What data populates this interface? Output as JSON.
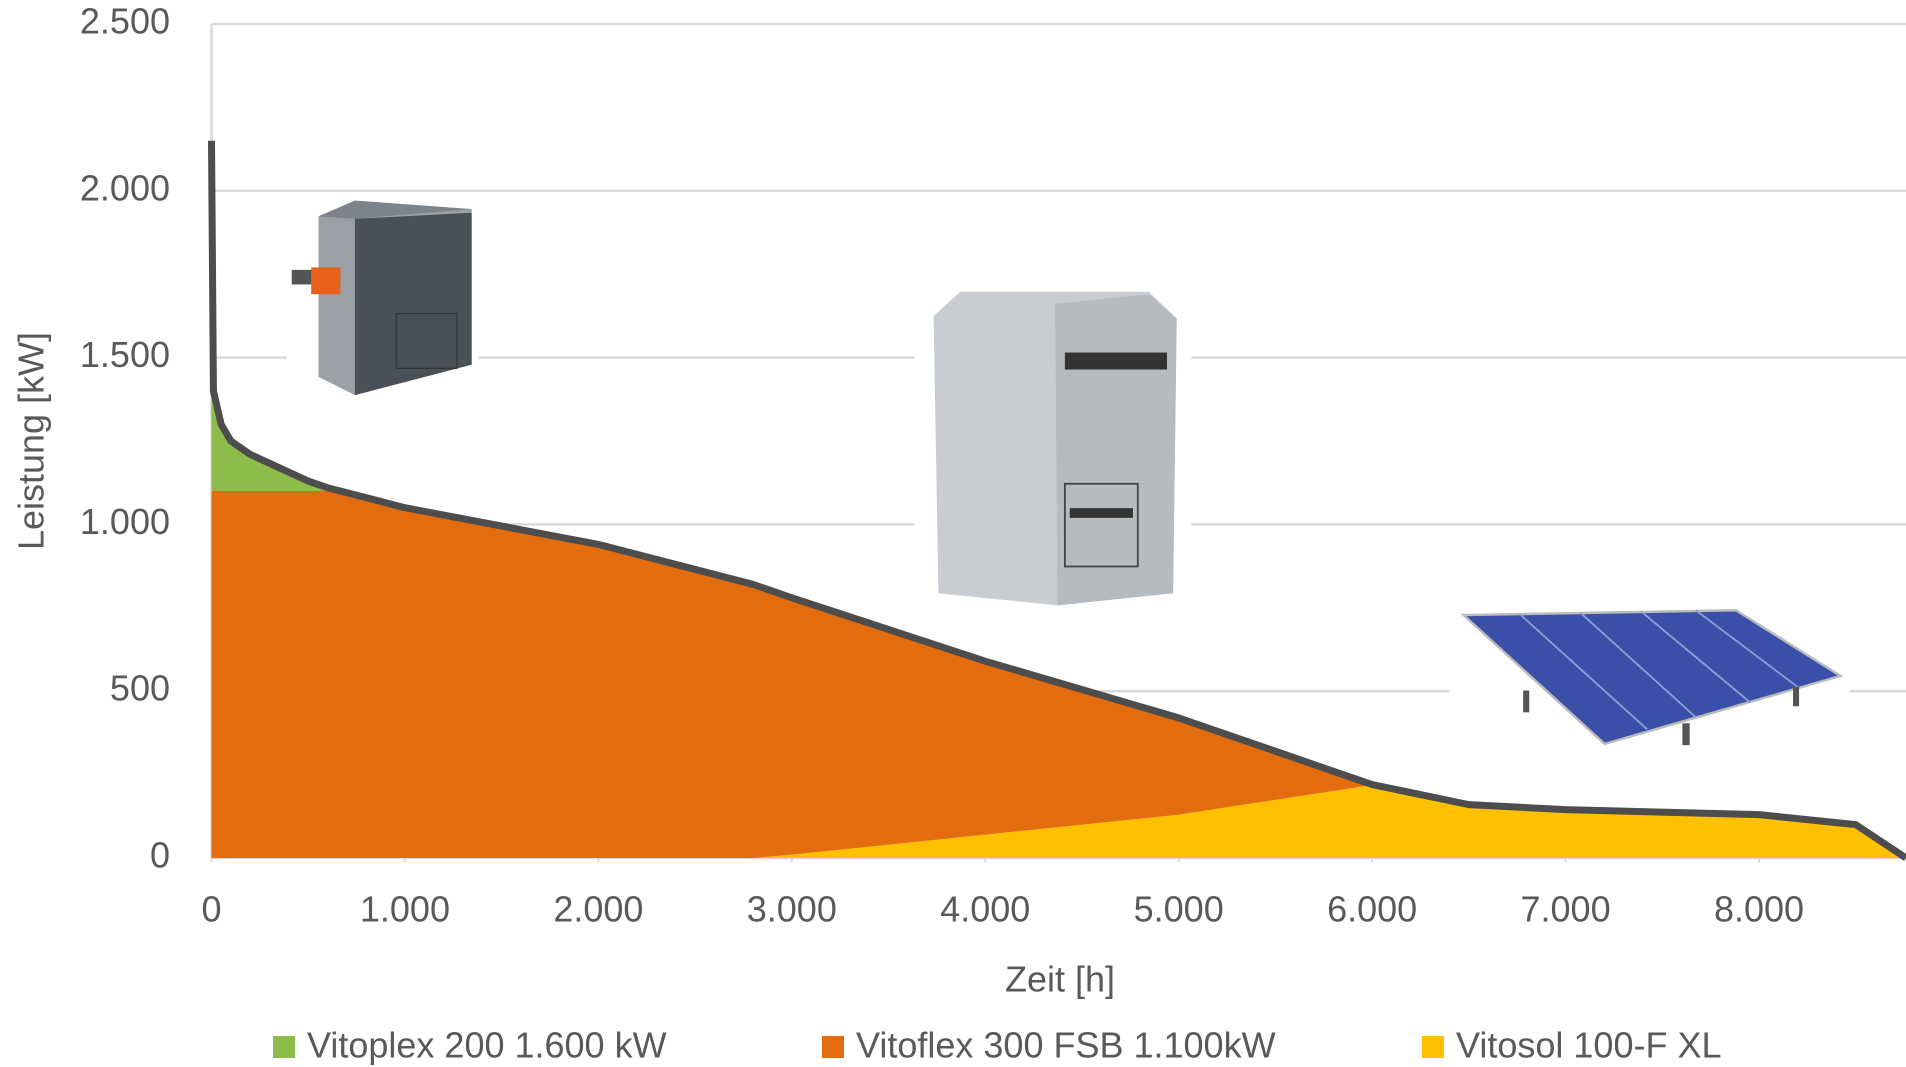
{
  "chart_data": {
    "type": "stacked-area",
    "xlabel": "Zeit [h]",
    "ylabel": "Leistung [kW]",
    "x": [
      0,
      10,
      50,
      100,
      200,
      500,
      600,
      1000,
      2000,
      2800,
      3000,
      4000,
      5000,
      5900,
      6000,
      6500,
      7000,
      8000,
      8500,
      8760
    ],
    "series": [
      {
        "name": "Vitoplex 200 1.600 kW",
        "color": "#8cbd4a",
        "values": [
          1050,
          300,
          200,
          150,
          110,
          30,
          10,
          0,
          0,
          0,
          0,
          0,
          0,
          0,
          0,
          0,
          0,
          0,
          0,
          0
        ]
      },
      {
        "name": "Vitoflex 300 FSB 1.100kW",
        "color": "#e36c0e",
        "values": [
          1100,
          1100,
          1100,
          1100,
          1100,
          1100,
          1100,
          1050,
          940,
          820,
          770,
          520,
          290,
          30,
          0,
          0,
          0,
          0,
          0,
          0
        ]
      },
      {
        "name": "Vitosol 100-F XL",
        "color": "#ffc000",
        "values": [
          0,
          0,
          0,
          0,
          0,
          0,
          0,
          0,
          0,
          0,
          10,
          70,
          130,
          210,
          220,
          160,
          145,
          130,
          100,
          0
        ]
      }
    ],
    "xlim": [
      0,
      8760
    ],
    "xticks": [
      0,
      {
        "value": 1000,
        "label": "1.000"
      },
      {
        "value": 2000,
        "label": "2.000"
      },
      {
        "value": 3000,
        "label": "3.000"
      },
      {
        "value": 4000,
        "label": "4.000"
      },
      {
        "value": 5000,
        "label": "5.000"
      },
      {
        "value": 6000,
        "label": "6.000"
      },
      {
        "value": 7000,
        "label": "7.000"
      },
      {
        "value": 8000,
        "label": "8.000"
      }
    ],
    "ylim": [
      0,
      2500
    ],
    "yticks": [
      0,
      500,
      {
        "value": 1000,
        "label": "1.000"
      },
      {
        "value": 1500,
        "label": "1.500"
      },
      {
        "value": 2000,
        "label": "2.000"
      },
      {
        "value": 2500,
        "label": "2.500"
      }
    ],
    "grid": true
  }
}
